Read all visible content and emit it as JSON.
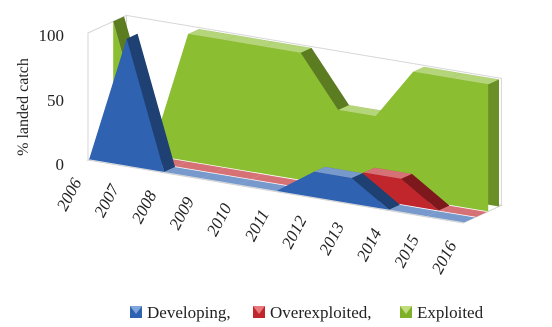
{
  "chart_data": {
    "type": "area",
    "style": "3d-ribbon",
    "title": "",
    "ylabel": "% landed catch",
    "xlabel": "",
    "ylim": [
      0,
      100
    ],
    "y_ticks": [
      "0",
      "50",
      "100"
    ],
    "categories": [
      "2006",
      "2007",
      "2008",
      "2009",
      "2010",
      "2011",
      "2012",
      "2013",
      "2014",
      "2015",
      "2016"
    ],
    "series": [
      {
        "name": "Developing,",
        "color": "#2f62b0",
        "values": [
          0,
          100,
          0,
          0,
          0,
          0,
          20,
          20,
          0,
          0,
          0
        ]
      },
      {
        "name": "Overexploited,",
        "color": "#c0262c",
        "values": [
          0,
          0,
          0,
          0,
          0,
          0,
          0,
          20,
          20,
          0,
          0
        ]
      },
      {
        "name": "Exploited",
        "color": "#8cbe32",
        "values": [
          100,
          0,
          100,
          100,
          100,
          100,
          60,
          60,
          100,
          100,
          100
        ]
      }
    ],
    "grid": false,
    "legend_position": "bottom"
  }
}
